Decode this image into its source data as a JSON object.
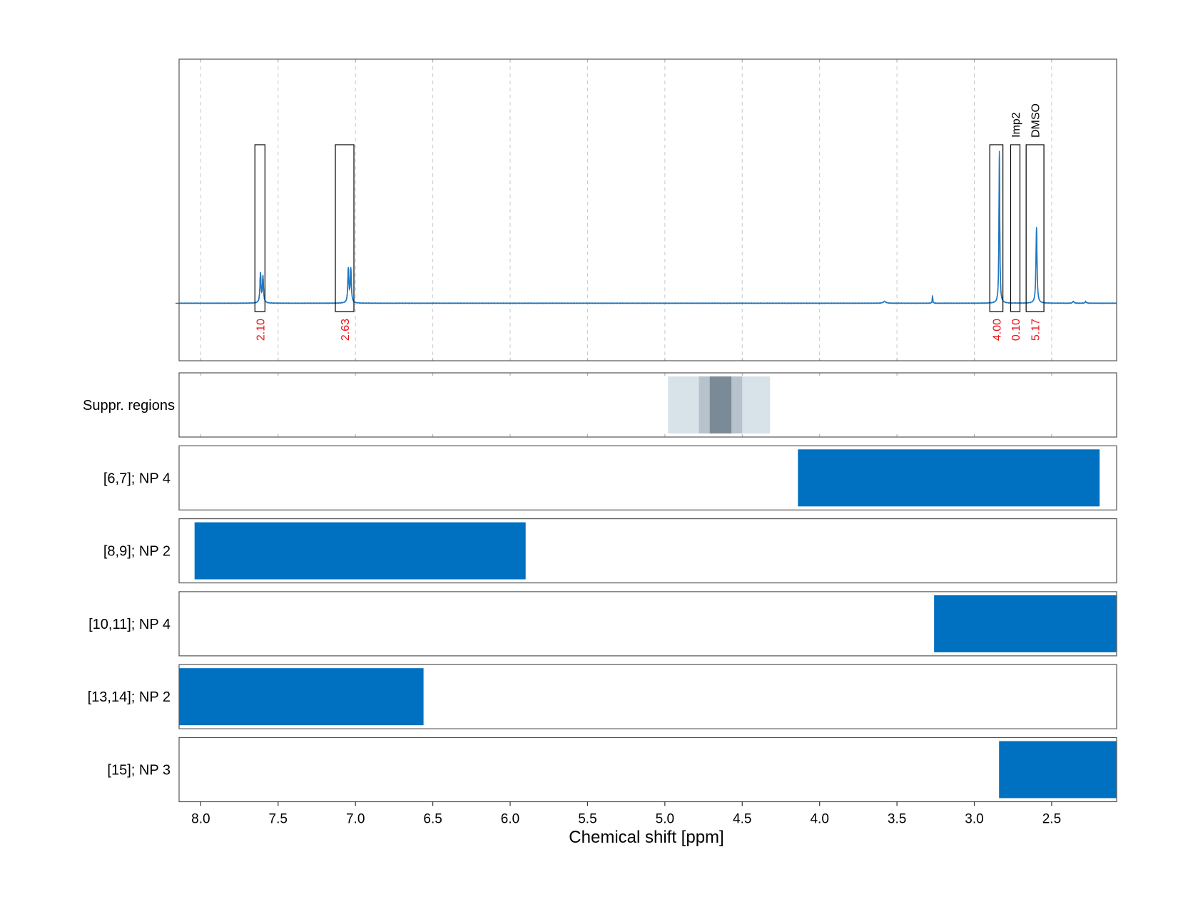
{
  "chart_data": {
    "type": "line",
    "xlabel": "Chemical shift [ppm]",
    "xlim": [
      8.14,
      2.08
    ],
    "x_reversed": true,
    "x_ticks": [
      {
        "value": 8.0,
        "label": "8.0"
      },
      {
        "value": 7.5,
        "label": "7.5"
      },
      {
        "value": 7.0,
        "label": "7.0"
      },
      {
        "value": 6.5,
        "label": "6.5"
      },
      {
        "value": 6.0,
        "label": "6.0"
      },
      {
        "value": 5.5,
        "label": "5.5"
      },
      {
        "value": 5.0,
        "label": "5.0"
      },
      {
        "value": 4.5,
        "label": "4.5"
      },
      {
        "value": 4.0,
        "label": "4.0"
      },
      {
        "value": 3.5,
        "label": "3.5"
      },
      {
        "value": 3.0,
        "label": "3.0"
      },
      {
        "value": 2.5,
        "label": "2.5"
      }
    ],
    "grid": true,
    "colors": {
      "spectrum": "#1f77c0",
      "bar": "#0070c0",
      "integral_text": "#e8141a",
      "grid": "#c8c8c8",
      "suppr_light": "#d8e2e9",
      "suppr_mid": "#b6c3cc",
      "suppr_dark": "#7a8a96"
    },
    "spectrum": {
      "baseline": 0,
      "ylim": [
        -0.37,
        1.57
      ],
      "peaks": [
        {
          "x": 7.614,
          "height": 0.19,
          "width": 0.004
        },
        {
          "x": 7.598,
          "height": 0.17,
          "width": 0.004
        },
        {
          "x": 7.046,
          "height": 0.22,
          "width": 0.004
        },
        {
          "x": 7.03,
          "height": 0.22,
          "width": 0.004
        },
        {
          "x": 3.58,
          "height": 0.012,
          "width": 0.01
        },
        {
          "x": 3.27,
          "height": 0.05,
          "width": 0.002
        },
        {
          "x": 2.838,
          "height": 0.98,
          "width": 0.003
        },
        {
          "x": 2.598,
          "height": 0.49,
          "width": 0.004
        },
        {
          "x": 2.36,
          "height": 0.012,
          "width": 0.005
        },
        {
          "x": 2.28,
          "height": 0.01,
          "width": 0.005
        }
      ]
    },
    "integrals": [
      {
        "from": 7.65,
        "to": 7.585,
        "value": "2.10",
        "label": ""
      },
      {
        "from": 7.13,
        "to": 7.01,
        "value": "2.63",
        "label": ""
      },
      {
        "from": 2.9,
        "to": 2.815,
        "value": "4.00",
        "label": ""
      },
      {
        "from": 2.765,
        "to": 2.705,
        "value": "0.10",
        "label": "Imp2"
      },
      {
        "from": 2.665,
        "to": 2.55,
        "value": "5.17",
        "label": "DMSO"
      }
    ],
    "suppression_panel": {
      "label": "Suppr. regions",
      "regions": [
        {
          "from": 4.98,
          "to": 4.32,
          "shade": "light"
        },
        {
          "from": 4.78,
          "to": 4.5,
          "shade": "mid"
        },
        {
          "from": 4.71,
          "to": 4.57,
          "shade": "dark"
        }
      ]
    },
    "bar_panels": [
      {
        "label": "[6,7]; NP 4",
        "from": 4.14,
        "to": 2.19
      },
      {
        "label": "[8,9]; NP 2",
        "from": 8.04,
        "to": 5.9
      },
      {
        "label": "[10,11]; NP 4",
        "from": 3.26,
        "to": 2.08
      },
      {
        "label": "[13,14]; NP 2",
        "from": 8.14,
        "to": 6.56
      },
      {
        "label": "[15]; NP 3",
        "from": 2.84,
        "to": 2.08
      }
    ]
  }
}
